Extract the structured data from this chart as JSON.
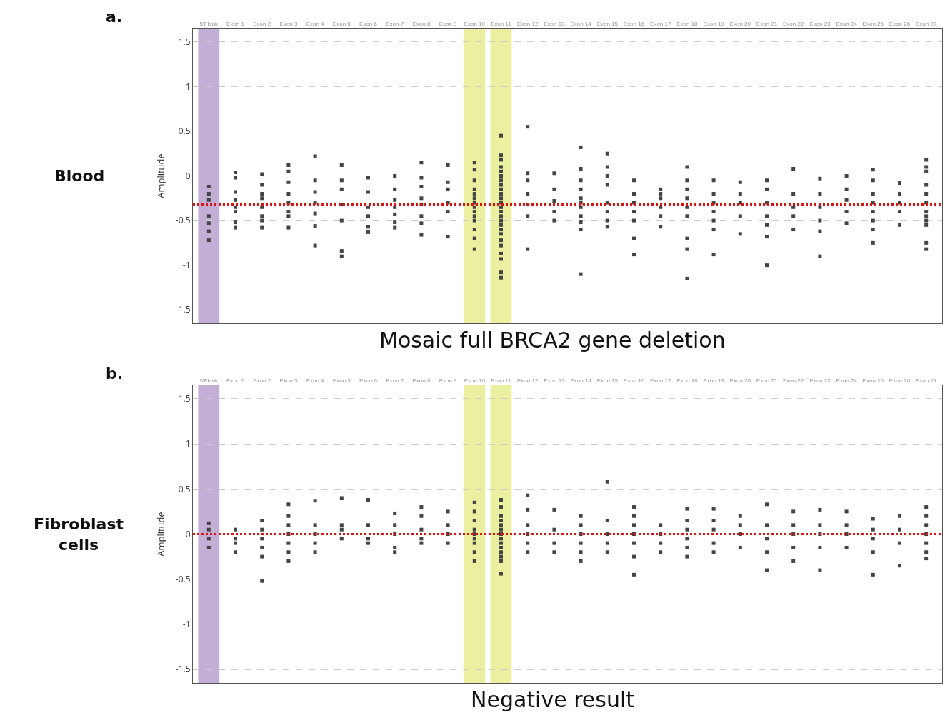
{
  "chart_data": [
    {
      "type": "scatter",
      "ylabel": "Amplitude",
      "marker": "square",
      "grid": "y",
      "ylim": [
        -1.65,
        1.65
      ],
      "yticks": [
        -1.5,
        -1,
        -0.5,
        0,
        0.5,
        1,
        1.5
      ],
      "categories": [
        "5'Flank",
        "Exon 1",
        "Exon 2",
        "Exon 3",
        "Exon 4",
        "Exon 5",
        "Exon 6",
        "Exon 7",
        "Exon 8",
        "Exon 9",
        "Exon 10",
        "Exon 11",
        "Exon 12",
        "Exon 13",
        "Exon 14",
        "Exon 15",
        "Exon 16",
        "Exon 17",
        "Exon 18",
        "Exon 19",
        "Exon 20",
        "Exon 21",
        "Exon 22",
        "Exon 23",
        "Exon 24",
        "Exon 25",
        "Exon 26",
        "Exon 27"
      ],
      "series": [
        {
          "color": "#444444",
          "x": [
            "5'Flank",
            "5'Flank",
            "5'Flank",
            "5'Flank",
            "5'Flank",
            "5'Flank",
            "5'Flank",
            "Exon 1",
            "Exon 1",
            "Exon 1",
            "Exon 1",
            "Exon 1",
            "Exon 1",
            "Exon 1",
            "Exon 1",
            "Exon 2",
            "Exon 2",
            "Exon 2",
            "Exon 2",
            "Exon 2",
            "Exon 2",
            "Exon 2",
            "Exon 2",
            "Exon 3",
            "Exon 3",
            "Exon 3",
            "Exon 3",
            "Exon 3",
            "Exon 3",
            "Exon 3",
            "Exon 3",
            "Exon 4",
            "Exon 4",
            "Exon 4",
            "Exon 4",
            "Exon 4",
            "Exon 4",
            "Exon 4",
            "Exon 5",
            "Exon 5",
            "Exon 5",
            "Exon 5",
            "Exon 5",
            "Exon 5",
            "Exon 5",
            "Exon 6",
            "Exon 6",
            "Exon 6",
            "Exon 6",
            "Exon 6",
            "Exon 6",
            "Exon 7",
            "Exon 7",
            "Exon 7",
            "Exon 7",
            "Exon 7",
            "Exon 7",
            "Exon 7",
            "Exon 8",
            "Exon 8",
            "Exon 8",
            "Exon 8",
            "Exon 8",
            "Exon 8",
            "Exon 8",
            "Exon 8",
            "Exon 9",
            "Exon 9",
            "Exon 9",
            "Exon 9",
            "Exon 9",
            "Exon 9",
            "Exon 10",
            "Exon 10",
            "Exon 10",
            "Exon 10",
            "Exon 10",
            "Exon 10",
            "Exon 10",
            "Exon 10",
            "Exon 10",
            "Exon 10",
            "Exon 10",
            "Exon 10",
            "Exon 10",
            "Exon 10",
            "Exon 11",
            "Exon 11",
            "Exon 11",
            "Exon 11",
            "Exon 11",
            "Exon 11",
            "Exon 11",
            "Exon 11",
            "Exon 11",
            "Exon 11",
            "Exon 11",
            "Exon 11",
            "Exon 11",
            "Exon 11",
            "Exon 11",
            "Exon 11",
            "Exon 11",
            "Exon 11",
            "Exon 11",
            "Exon 11",
            "Exon 11",
            "Exon 11",
            "Exon 11",
            "Exon 11",
            "Exon 11",
            "Exon 12",
            "Exon 12",
            "Exon 12",
            "Exon 12",
            "Exon 12",
            "Exon 12",
            "Exon 12",
            "Exon 13",
            "Exon 13",
            "Exon 13",
            "Exon 13",
            "Exon 13",
            "Exon 14",
            "Exon 14",
            "Exon 14",
            "Exon 14",
            "Exon 14",
            "Exon 14",
            "Exon 14",
            "Exon 14",
            "Exon 14",
            "Exon 14",
            "Exon 14",
            "Exon 15",
            "Exon 15",
            "Exon 15",
            "Exon 15",
            "Exon 15",
            "Exon 15",
            "Exon 15",
            "Exon 15",
            "Exon 16",
            "Exon 16",
            "Exon 16",
            "Exon 16",
            "Exon 16",
            "Exon 16",
            "Exon 16",
            "Exon 17",
            "Exon 17",
            "Exon 17",
            "Exon 17",
            "Exon 17",
            "Exon 17",
            "Exon 18",
            "Exon 18",
            "Exon 18",
            "Exon 18",
            "Exon 18",
            "Exon 18",
            "Exon 18",
            "Exon 18",
            "Exon 18",
            "Exon 19",
            "Exon 19",
            "Exon 19",
            "Exon 19",
            "Exon 19",
            "Exon 19",
            "Exon 19",
            "Exon 20",
            "Exon 20",
            "Exon 20",
            "Exon 20",
            "Exon 20",
            "Exon 21",
            "Exon 21",
            "Exon 21",
            "Exon 21",
            "Exon 21",
            "Exon 21",
            "Exon 21",
            "Exon 22",
            "Exon 22",
            "Exon 22",
            "Exon 22",
            "Exon 22",
            "Exon 23",
            "Exon 23",
            "Exon 23",
            "Exon 23",
            "Exon 23",
            "Exon 23",
            "Exon 24",
            "Exon 24",
            "Exon 24",
            "Exon 24",
            "Exon 24",
            "Exon 25",
            "Exon 25",
            "Exon 25",
            "Exon 25",
            "Exon 25",
            "Exon 25",
            "Exon 25",
            "Exon 25",
            "Exon 26",
            "Exon 26",
            "Exon 26",
            "Exon 26",
            "Exon 26",
            "Exon 27",
            "Exon 27",
            "Exon 27",
            "Exon 27",
            "Exon 27",
            "Exon 27",
            "Exon 27",
            "Exon 27",
            "Exon 27",
            "Exon 27",
            "Exon 27",
            "Exon 27"
          ],
          "values": [
            -0.12,
            -0.2,
            -0.27,
            -0.45,
            -0.53,
            -0.62,
            -0.72,
            -0.02,
            0.04,
            -0.18,
            -0.27,
            -0.35,
            -0.4,
            -0.52,
            -0.58,
            0.02,
            -0.1,
            -0.2,
            -0.25,
            -0.35,
            -0.45,
            -0.5,
            -0.58,
            0.12,
            0.05,
            -0.07,
            -0.2,
            -0.3,
            -0.4,
            -0.45,
            -0.58,
            0.22,
            -0.05,
            -0.18,
            -0.3,
            -0.42,
            -0.56,
            -0.78,
            0.12,
            -0.05,
            -0.15,
            -0.32,
            -0.5,
            -0.84,
            -0.9,
            -0.02,
            -0.18,
            -0.35,
            -0.45,
            -0.57,
            -0.63,
            0,
            -0.15,
            -0.27,
            -0.35,
            -0.43,
            -0.52,
            -0.58,
            0.15,
            -0.02,
            -0.12,
            -0.25,
            -0.32,
            -0.45,
            -0.53,
            -0.66,
            0.12,
            -0.07,
            -0.15,
            -0.3,
            -0.4,
            -0.68,
            0.15,
            0.07,
            -0.05,
            -0.15,
            -0.2,
            -0.25,
            -0.3,
            -0.35,
            -0.4,
            -0.45,
            -0.5,
            -0.6,
            -0.7,
            -0.82,
            0.45,
            0.23,
            0.18,
            0.1,
            0.05,
            0,
            -0.05,
            -0.1,
            -0.15,
            -0.2,
            -0.25,
            -0.3,
            -0.35,
            -0.4,
            -0.45,
            -0.5,
            -0.55,
            -0.6,
            -0.65,
            -0.72,
            -0.78,
            -0.87,
            -0.93,
            -1.08,
            -1.14,
            0.55,
            0.03,
            -0.05,
            -0.2,
            -0.32,
            -0.45,
            -0.82,
            0.03,
            -0.15,
            -0.28,
            -0.4,
            -0.5,
            0.32,
            0.08,
            -0.05,
            -0.15,
            -0.25,
            -0.3,
            -0.35,
            -0.45,
            -0.52,
            -0.6,
            -1.1,
            0.25,
            0.1,
            0,
            -0.1,
            -0.3,
            -0.4,
            -0.5,
            -0.57,
            -0.05,
            -0.2,
            -0.3,
            -0.4,
            -0.5,
            -0.7,
            -0.88,
            -0.15,
            -0.2,
            -0.25,
            -0.35,
            -0.45,
            -0.57,
            0.1,
            -0.05,
            -0.15,
            -0.25,
            -0.35,
            -0.45,
            -0.7,
            -0.82,
            -1.15,
            -0.05,
            -0.2,
            -0.3,
            -0.4,
            -0.5,
            -0.6,
            -0.88,
            -0.07,
            -0.2,
            -0.3,
            -0.45,
            -0.65,
            -0.05,
            -0.15,
            -0.3,
            -0.45,
            -0.55,
            -0.68,
            -1,
            0.08,
            -0.2,
            -0.35,
            -0.45,
            -0.6,
            -0.03,
            -0.2,
            -0.35,
            -0.5,
            -0.62,
            -0.9,
            0,
            -0.15,
            -0.27,
            -0.4,
            -0.53,
            0.07,
            -0.05,
            -0.2,
            -0.3,
            -0.4,
            -0.5,
            -0.6,
            -0.75,
            -0.08,
            -0.2,
            -0.3,
            -0.4,
            -0.55,
            0.18,
            0.1,
            0.05,
            -0.1,
            -0.2,
            -0.3,
            -0.4,
            -0.45,
            -0.5,
            -0.55,
            -0.75,
            -0.82
          ]
        }
      ],
      "ref_lines": [
        {
          "axis": "y",
          "value": 0,
          "color": "#5a6a9a",
          "line_style": "solid"
        },
        {
          "axis": "y",
          "value": -0.32,
          "color": "#dd1111",
          "line_style": "dotted"
        }
      ],
      "bands": [
        {
          "axis": "x",
          "from": "5'Flank",
          "to": "5'Flank",
          "color": "#c3aed6"
        },
        {
          "axis": "x",
          "from": "Exon 10",
          "to": "Exon 10",
          "color": "#eaf0a0"
        },
        {
          "axis": "x",
          "from": "Exon 11",
          "to": "Exon 11",
          "color": "#eaf0a0"
        }
      ],
      "annotations": [
        "a.",
        "Blood",
        "Mosaic full BRCA2 gene deletion"
      ]
    },
    {
      "type": "scatter",
      "ylabel": "Amplitude",
      "marker": "square",
      "grid": "y",
      "ylim": [
        -1.65,
        1.65
      ],
      "yticks": [
        -1.5,
        -1,
        -0.5,
        0,
        0.5,
        1,
        1.5
      ],
      "categories": [
        "5'Flank",
        "Exon 1",
        "Exon 2",
        "Exon 3",
        "Exon 4",
        "Exon 5",
        "Exon 6",
        "Exon 7",
        "Exon 8",
        "Exon 9",
        "Exon 10",
        "Exon 11",
        "Exon 12",
        "Exon 13",
        "Exon 14",
        "Exon 15",
        "Exon 16",
        "Exon 17",
        "Exon 18",
        "Exon 19",
        "Exon 20",
        "Exon 21",
        "Exon 22",
        "Exon 23",
        "Exon 24",
        "Exon 25",
        "Exon 26",
        "Exon 27"
      ],
      "series": [
        {
          "color": "#444444",
          "x": [
            "5'Flank",
            "5'Flank",
            "5'Flank",
            "5'Flank",
            "Exon 1",
            "Exon 1",
            "Exon 1",
            "Exon 1",
            "Exon 2",
            "Exon 2",
            "Exon 2",
            "Exon 2",
            "Exon 2",
            "Exon 2",
            "Exon 3",
            "Exon 3",
            "Exon 3",
            "Exon 3",
            "Exon 3",
            "Exon 3",
            "Exon 3",
            "Exon 4",
            "Exon 4",
            "Exon 4",
            "Exon 4",
            "Exon 4",
            "Exon 5",
            "Exon 5",
            "Exon 5",
            "Exon 5",
            "Exon 6",
            "Exon 6",
            "Exon 6",
            "Exon 6",
            "Exon 7",
            "Exon 7",
            "Exon 7",
            "Exon 7",
            "Exon 7",
            "Exon 8",
            "Exon 8",
            "Exon 8",
            "Exon 8",
            "Exon 8",
            "Exon 9",
            "Exon 9",
            "Exon 9",
            "Exon 9",
            "Exon 10",
            "Exon 10",
            "Exon 10",
            "Exon 10",
            "Exon 10",
            "Exon 10",
            "Exon 10",
            "Exon 10",
            "Exon 10",
            "Exon 11",
            "Exon 11",
            "Exon 11",
            "Exon 11",
            "Exon 11",
            "Exon 11",
            "Exon 11",
            "Exon 11",
            "Exon 11",
            "Exon 11",
            "Exon 11",
            "Exon 11",
            "Exon 11",
            "Exon 11",
            "Exon 12",
            "Exon 12",
            "Exon 12",
            "Exon 12",
            "Exon 12",
            "Exon 12",
            "Exon 13",
            "Exon 13",
            "Exon 13",
            "Exon 13",
            "Exon 14",
            "Exon 14",
            "Exon 14",
            "Exon 14",
            "Exon 14",
            "Exon 14",
            "Exon 15",
            "Exon 15",
            "Exon 15",
            "Exon 15",
            "Exon 15",
            "Exon 16",
            "Exon 16",
            "Exon 16",
            "Exon 16",
            "Exon 16",
            "Exon 16",
            "Exon 16",
            "Exon 17",
            "Exon 17",
            "Exon 17",
            "Exon 17",
            "Exon 18",
            "Exon 18",
            "Exon 18",
            "Exon 18",
            "Exon 18",
            "Exon 18",
            "Exon 19",
            "Exon 19",
            "Exon 19",
            "Exon 19",
            "Exon 19",
            "Exon 20",
            "Exon 20",
            "Exon 20",
            "Exon 20",
            "Exon 21",
            "Exon 21",
            "Exon 21",
            "Exon 21",
            "Exon 21",
            "Exon 22",
            "Exon 22",
            "Exon 22",
            "Exon 22",
            "Exon 22",
            "Exon 23",
            "Exon 23",
            "Exon 23",
            "Exon 23",
            "Exon 23",
            "Exon 24",
            "Exon 24",
            "Exon 24",
            "Exon 24",
            "Exon 25",
            "Exon 25",
            "Exon 25",
            "Exon 25",
            "Exon 25",
            "Exon 26",
            "Exon 26",
            "Exon 26",
            "Exon 26",
            "Exon 27",
            "Exon 27",
            "Exon 27",
            "Exon 27",
            "Exon 27",
            "Exon 27",
            "Exon 27"
          ],
          "values": [
            0.12,
            0.05,
            -0.05,
            -0.15,
            0.05,
            -0.05,
            -0.1,
            -0.2,
            0.15,
            0.05,
            -0.05,
            -0.15,
            -0.25,
            -0.52,
            0.33,
            0.2,
            0.1,
            0,
            -0.1,
            -0.2,
            -0.3,
            0.37,
            0.1,
            0,
            -0.1,
            -0.2,
            0.4,
            0.1,
            0.05,
            -0.05,
            0.38,
            0.1,
            -0.05,
            -0.1,
            0.23,
            0.1,
            0,
            -0.15,
            -0.2,
            0.3,
            0.2,
            0.05,
            -0.05,
            -0.1,
            0.25,
            0.1,
            0,
            -0.1,
            0.35,
            0.25,
            0.15,
            0.05,
            0,
            -0.05,
            -0.1,
            -0.2,
            -0.3,
            0.38,
            0.3,
            0.2,
            0.15,
            0.1,
            0.05,
            0,
            -0.05,
            -0.1,
            -0.15,
            -0.2,
            -0.25,
            -0.3,
            -0.44,
            0.43,
            0.27,
            0.1,
            0,
            -0.1,
            -0.2,
            0.27,
            0.05,
            -0.1,
            -0.2,
            0.2,
            0.1,
            0,
            -0.1,
            -0.2,
            -0.3,
            0.58,
            0.15,
            0,
            -0.1,
            -0.2,
            0.3,
            0.2,
            0.1,
            0,
            -0.1,
            -0.25,
            -0.45,
            0.1,
            0,
            -0.1,
            -0.2,
            0.28,
            0.15,
            0.05,
            -0.05,
            -0.15,
            -0.25,
            0.28,
            0.15,
            0.05,
            -0.1,
            -0.2,
            0.2,
            0.1,
            0,
            -0.15,
            0.33,
            0.1,
            -0.05,
            -0.2,
            -0.4,
            0.25,
            0.1,
            0,
            -0.15,
            -0.3,
            0.27,
            0.1,
            0,
            -0.15,
            -0.4,
            0.25,
            0.1,
            0,
            -0.15,
            0.17,
            0.05,
            -0.05,
            -0.2,
            -0.45,
            0.2,
            0.05,
            -0.1,
            -0.35,
            0.3,
            0.2,
            0.1,
            0,
            -0.1,
            -0.2,
            -0.27
          ]
        }
      ],
      "ref_lines": [
        {
          "axis": "y",
          "value": 0,
          "color": "#dd1111",
          "line_style": "dotted"
        }
      ],
      "bands": [
        {
          "axis": "x",
          "from": "5'Flank",
          "to": "5'Flank",
          "color": "#c3aed6"
        },
        {
          "axis": "x",
          "from": "Exon 10",
          "to": "Exon 10",
          "color": "#eaf0a0"
        },
        {
          "axis": "x",
          "from": "Exon 11",
          "to": "Exon 11",
          "color": "#eaf0a0"
        }
      ],
      "annotations": [
        "b.",
        "Fibroblast cells",
        "Negative result"
      ]
    }
  ]
}
